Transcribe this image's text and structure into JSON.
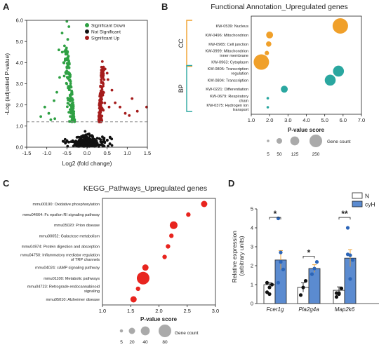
{
  "panels": {
    "A": "A",
    "B": "B",
    "C": "C",
    "D": "D"
  },
  "chart_data": [
    {
      "id": "A",
      "type": "scatter",
      "title": "",
      "xlabel": "Log2 (fold change)",
      "ylabel": "-Log (adjusted P-value)",
      "xlim": [
        -1.5,
        1.5
      ],
      "ylim": [
        0,
        6
      ],
      "xticks": [
        "-1.5",
        "-1.0",
        "-0.5",
        "0.0",
        "0.5",
        "1.0",
        "1.5"
      ],
      "yticks": [
        "0.0",
        "1.0",
        "2.0",
        "3.0",
        "4.0",
        "5.0",
        "6.0"
      ],
      "threshold_y": 1.2,
      "legend_position": "top-left",
      "legend": [
        {
          "name": "Significant Down",
          "color": "#2ea043"
        },
        {
          "name": "Not Significant",
          "color": "#111111"
        },
        {
          "name": "Significant Up",
          "color": "#a51c1c"
        }
      ],
      "colors": {
        "down": "#2ea043",
        "ns": "#111111",
        "up": "#a51c1c",
        "threshold": "#888888"
      },
      "extra_points": {
        "down": [
          [
            -0.55,
            6.0
          ],
          [
            -0.5,
            5.95
          ],
          [
            -0.45,
            5.7
          ],
          [
            -0.62,
            5.4
          ],
          [
            -0.48,
            5.1
          ],
          [
            -0.7,
            4.6
          ],
          [
            -0.52,
            4.4
          ],
          [
            -0.58,
            4.0
          ],
          [
            -1.05,
            1.9
          ],
          [
            -0.95,
            1.6
          ],
          [
            -1.15,
            1.45
          ],
          [
            -0.9,
            1.3
          ],
          [
            -0.75,
            2.6
          ],
          [
            -0.82,
            2.2
          ],
          [
            -0.68,
            3.3
          ],
          [
            -0.8,
            1.35
          ]
        ],
        "up": [
          [
            0.5,
            3.5
          ],
          [
            0.52,
            3.2
          ],
          [
            0.45,
            3.7
          ],
          [
            0.62,
            2.7
          ],
          [
            0.82,
            1.9
          ],
          [
            0.95,
            1.6
          ],
          [
            1.05,
            1.5
          ],
          [
            1.12,
            2.3
          ],
          [
            1.25,
            1.7
          ],
          [
            1.55,
            2.7
          ],
          [
            1.48,
            1.9
          ],
          [
            0.38,
            4.05
          ],
          [
            0.55,
            1.9
          ],
          [
            0.7,
            2.1
          ]
        ]
      }
    },
    {
      "id": "B",
      "type": "scatter",
      "title": "Functional Annotation_Upregulated genes",
      "xlabel": "P-value score",
      "xlim": [
        1.0,
        7.0
      ],
      "xticks": [
        "1.0",
        "2.0",
        "3.0",
        "4.0",
        "5.0",
        "6.0",
        "7.0"
      ],
      "groups": [
        {
          "label": "CC",
          "color": "#f0a02a"
        },
        {
          "label": "BP",
          "color": "#2aa7a0"
        }
      ],
      "categories": [
        {
          "label": "KW-0539: Nucleus",
          "x": 5.85,
          "count": 250,
          "group": 0
        },
        {
          "label": "KW-0496: Mitochondrion",
          "x": 2.0,
          "count": 50,
          "group": 0
        },
        {
          "label": "KW-0965: Cell junction",
          "x": 1.95,
          "count": 30,
          "group": 0
        },
        {
          "label": "KW-0999: Mitochondrion\ninner membrane",
          "x": 1.85,
          "count": 20,
          "group": 0
        },
        {
          "label": "KW-0963: Cytoplasm",
          "x": 1.55,
          "count": 250,
          "group": 0
        },
        {
          "label": "KW-0805: Transcription\nregulation",
          "x": 5.75,
          "count": 125,
          "group": 1
        },
        {
          "label": "KW-0804: Transcription",
          "x": 5.3,
          "count": 125,
          "group": 1
        },
        {
          "label": "KW-0221: Differentiation",
          "x": 2.8,
          "count": 50,
          "group": 1
        },
        {
          "label": "KW-0679: Respiratory\nchain",
          "x": 1.9,
          "count": 5,
          "group": 1
        },
        {
          "label": "KW-0375: Hydrogen ion\ntransport",
          "x": 1.9,
          "count": 5,
          "group": 1
        }
      ],
      "size_legend": {
        "title": "Gene count",
        "values": [
          5,
          50,
          125,
          250
        ],
        "color": "#aaaaaa"
      },
      "legend_position": "bottom"
    },
    {
      "id": "C",
      "type": "scatter",
      "title": "KEGG_Pathways_Upregulated genes",
      "xlabel": "P-value score",
      "xlim": [
        1.0,
        3.0
      ],
      "xticks": [
        "1.0",
        "1.5",
        "2.0",
        "2.5",
        "3.0"
      ],
      "color": "#e8241e",
      "categories": [
        {
          "label": "mmu00190: Oxidative phosphorylation",
          "x": 2.8,
          "count": 20
        },
        {
          "label": "mmu04664: Fc epsilon RI signaling pathway",
          "x": 2.52,
          "count": 10
        },
        {
          "label": "mmu05020: Prion disease",
          "x": 2.26,
          "count": 30
        },
        {
          "label": "mmu00052: Galactose metabolism",
          "x": 2.22,
          "count": 10
        },
        {
          "label": "mmu04974: Protein digestion and absorption",
          "x": 2.16,
          "count": 10
        },
        {
          "label": "mmu04750: Inflammatory mediator regulation\nof TRP channels",
          "x": 2.1,
          "count": 10
        },
        {
          "label": "mmu04024: cAMP signaling pathway",
          "x": 1.76,
          "count": 20
        },
        {
          "label": "mmu01100: Metabolic pathways",
          "x": 1.72,
          "count": 80
        },
        {
          "label": "mmu04723: Retrograde endocannabinoid\nsignaling",
          "x": 1.63,
          "count": 10
        },
        {
          "label": "mmu05010: Alzheimer disease",
          "x": 1.55,
          "count": 20
        }
      ],
      "size_legend": {
        "title": "Gene count",
        "values": [
          5,
          20,
          40,
          80
        ],
        "color": "#aaaaaa"
      },
      "legend_position": "bottom"
    },
    {
      "id": "D",
      "type": "bar",
      "ylabel": "Relative expression\n(arbitrary units)",
      "ylim": [
        0,
        5
      ],
      "yticks": [
        "0",
        "1",
        "2",
        "3",
        "4",
        "5"
      ],
      "categories": [
        "Fcer1g",
        "Pla2g4a",
        "Map2k6"
      ],
      "series": [
        {
          "name": "N",
          "color": "#ffffff",
          "values": [
            1.0,
            0.85,
            0.7
          ],
          "errors": [
            0.1,
            0.25,
            0.18
          ],
          "points": [
            [
              0.6,
              0.85,
              1.0,
              1.1,
              0.5
            ],
            [
              0.45,
              0.85,
              1.2
            ],
            [
              0.35,
              0.55,
              0.8,
              0.55,
              0.5
            ]
          ]
        },
        {
          "name": "cyH",
          "color": "#5b8bd0",
          "values": [
            2.3,
            1.85,
            2.4
          ],
          "errors": [
            0.5,
            0.2,
            0.45
          ],
          "points": [
            [
              4.5,
              2.2,
              1.8,
              1.1,
              2.7
            ],
            [
              1.55,
              1.85,
              2.2
            ],
            [
              4.0,
              1.3,
              2.3,
              2.6,
              2.55
            ]
          ]
        }
      ],
      "significance": [
        "*",
        "*",
        "**"
      ],
      "legend_position": "top-right"
    }
  ]
}
